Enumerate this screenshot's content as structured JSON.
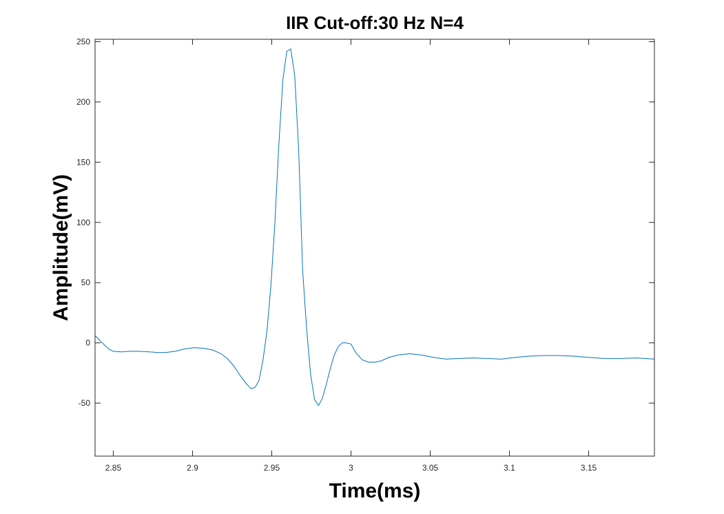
{
  "chart_data": {
    "type": "line",
    "title": "IIR Cut-off:30 Hz N=4",
    "xlabel": "Time(ms)",
    "ylabel": "Amplitude(mV)",
    "xlim": [
      2.8385,
      3.1915
    ],
    "ylim": [
      -94,
      252
    ],
    "xticks": [
      {
        "value": 2.85,
        "label": "2.85"
      },
      {
        "value": 2.9,
        "label": "2.9"
      },
      {
        "value": 2.95,
        "label": "2.95"
      },
      {
        "value": 3.0,
        "label": "3"
      },
      {
        "value": 3.05,
        "label": "3.05"
      },
      {
        "value": 3.1,
        "label": "3.1"
      },
      {
        "value": 3.15,
        "label": "3.15"
      }
    ],
    "yticks": [
      {
        "value": -50,
        "label": "-50"
      },
      {
        "value": 0,
        "label": "0"
      },
      {
        "value": 50,
        "label": "50"
      },
      {
        "value": 100,
        "label": "100"
      },
      {
        "value": 150,
        "label": "150"
      },
      {
        "value": 200,
        "label": "200"
      },
      {
        "value": 250,
        "label": "250"
      }
    ],
    "grid": false,
    "line_color": "#0072BD",
    "series": [
      {
        "x": [
          2.8385,
          2.843,
          2.847,
          2.85,
          2.855,
          2.86,
          2.866,
          2.873,
          2.878,
          2.883,
          2.889,
          2.895,
          2.901,
          2.907,
          2.913,
          2.918,
          2.922,
          2.926,
          2.93,
          2.934,
          2.937,
          2.9395,
          2.942,
          2.9445,
          2.947,
          2.9495,
          2.952,
          2.9545,
          2.957,
          2.9595,
          2.962,
          2.9645,
          2.967,
          2.9695,
          2.972,
          2.9745,
          2.977,
          2.9795,
          2.982,
          2.9845,
          2.987,
          2.9895,
          2.992,
          2.9945,
          2.997,
          3.0,
          3.003,
          3.007,
          3.011,
          3.015,
          3.019,
          3.024,
          3.03,
          3.037,
          3.044,
          3.052,
          3.06,
          3.068,
          3.077,
          3.086,
          3.095,
          3.104,
          3.113,
          3.122,
          3.131,
          3.14,
          3.15,
          3.16,
          3.17,
          3.18,
          3.1915
        ],
        "y": [
          6,
          0,
          -5,
          -7,
          -7.5,
          -7,
          -7,
          -7.5,
          -8,
          -8,
          -7,
          -5,
          -4,
          -4.5,
          -6,
          -9,
          -13,
          -19,
          -27,
          -34,
          -38,
          -37,
          -31,
          -14,
          10,
          48,
          100,
          165,
          218,
          242,
          244,
          222,
          160,
          60,
          12,
          -26,
          -47,
          -52,
          -46,
          -34,
          -21,
          -10,
          -3,
          0,
          0,
          -1,
          -8,
          -14,
          -16,
          -16,
          -15,
          -12,
          -10,
          -9,
          -10,
          -12,
          -13.5,
          -13,
          -12.5,
          -13,
          -13.5,
          -12,
          -11,
          -10.5,
          -10.5,
          -11,
          -12,
          -13,
          -13,
          -12.5,
          -13.5
        ]
      }
    ]
  }
}
